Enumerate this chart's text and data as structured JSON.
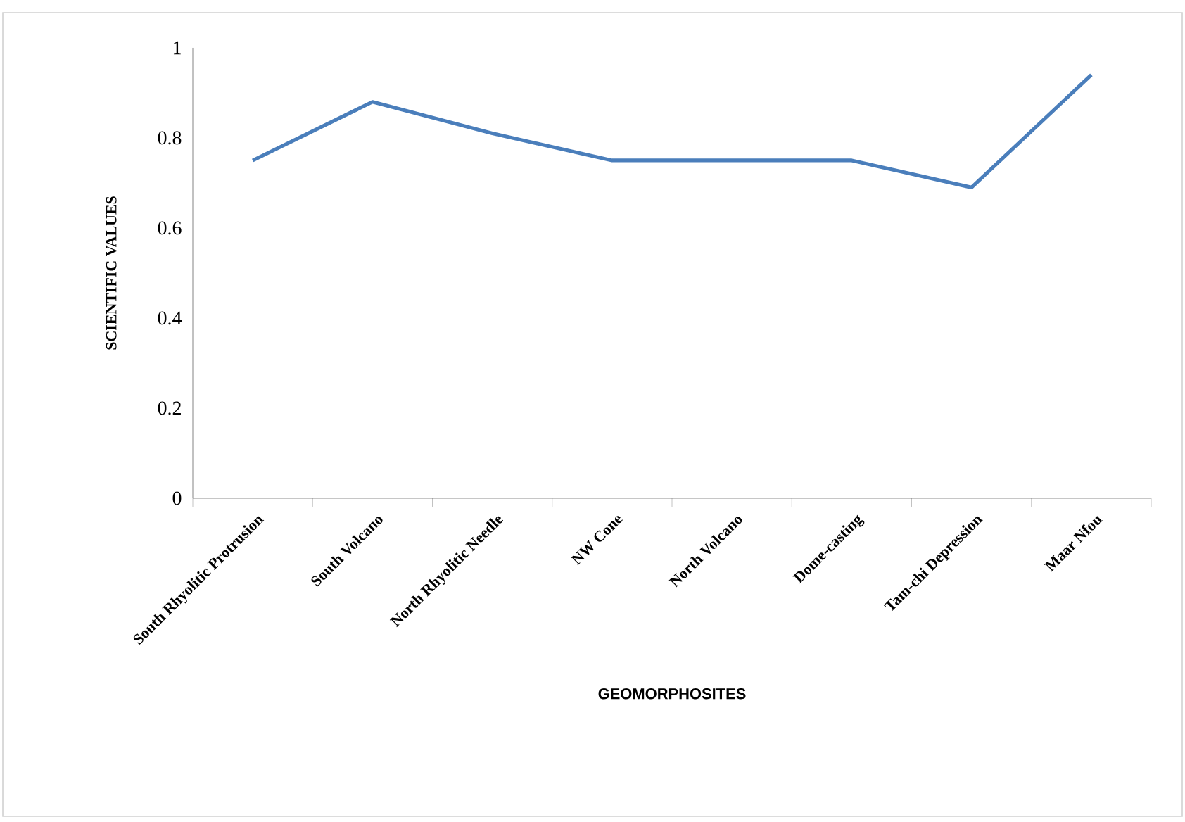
{
  "chart_data": {
    "type": "line",
    "xlabel": "GEOMORPHOSITES",
    "ylabel": "SCIENTIFIC VALUES",
    "categories": [
      "South Rhyolitic Protrusion",
      "South Volcano",
      "North Rhyolitic Needle",
      "NW Cone",
      "North Volcano",
      "Dome-casting",
      "Tam-chi Depression",
      "Maar Nfou"
    ],
    "series": [
      {
        "color": "#4a7ebb",
        "values": [
          0.75,
          0.88,
          0.81,
          0.75,
          0.75,
          0.75,
          0.69,
          0.94
        ]
      }
    ],
    "ylim": [
      0,
      1
    ],
    "yticks": [
      0,
      0.2,
      0.4,
      0.6,
      0.8,
      1
    ],
    "grid": false,
    "marker": "none",
    "line_style": "solid"
  }
}
